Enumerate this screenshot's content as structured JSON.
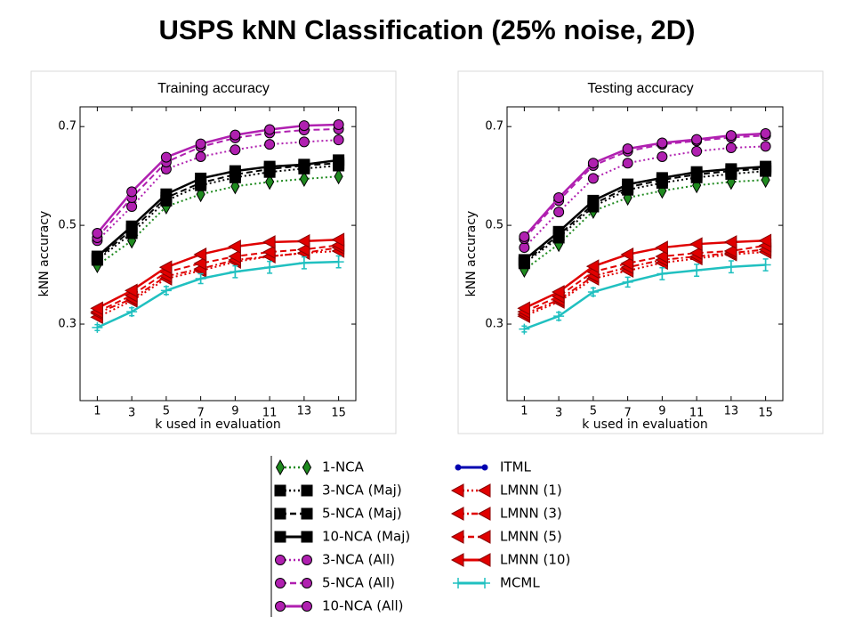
{
  "title": "USPS kNN Classification (25% noise, 2D)",
  "chart_data": [
    {
      "type": "line",
      "title": "Training accuracy",
      "xlabel": "k used in evaluation",
      "ylabel": "kNN accuracy",
      "x": [
        1,
        3,
        5,
        7,
        9,
        11,
        13,
        15
      ],
      "xlim": [
        0,
        16
      ],
      "xticks": [
        1,
        3,
        5,
        7,
        9,
        11,
        13,
        15
      ],
      "ylim": [
        0.145,
        0.74
      ],
      "yticks": [
        0.3,
        0.5,
        0.7
      ],
      "series": [
        {
          "name": "1-NCA",
          "color": "#1f8a1f",
          "marker": "diamond",
          "dash": "dotted",
          "values": [
            0.419,
            0.469,
            0.538,
            0.563,
            0.579,
            0.588,
            0.594,
            0.599
          ]
        },
        {
          "name": "3-NCA (Maj)",
          "color": "#000000",
          "marker": "square",
          "dash": "dotted",
          "values": [
            0.43,
            0.484,
            0.55,
            0.581,
            0.597,
            0.608,
            0.615,
            0.621
          ]
        },
        {
          "name": "5-NCA (Maj)",
          "color": "#000000",
          "marker": "square",
          "dash": "dashed",
          "values": [
            0.433,
            0.491,
            0.556,
            0.586,
            0.603,
            0.614,
            0.621,
            0.626
          ]
        },
        {
          "name": "10-NCA (Maj)",
          "color": "#000000",
          "marker": "square",
          "dash": "solid",
          "values": [
            0.437,
            0.498,
            0.563,
            0.595,
            0.61,
            0.619,
            0.623,
            0.632
          ]
        },
        {
          "name": "3-NCA (All)",
          "color": "#b020b0",
          "marker": "circle",
          "dash": "dotted",
          "values": [
            0.469,
            0.538,
            0.614,
            0.639,
            0.653,
            0.664,
            0.669,
            0.673
          ]
        },
        {
          "name": "5-NCA (All)",
          "color": "#b020b0",
          "marker": "circle",
          "dash": "dashed",
          "values": [
            0.475,
            0.556,
            0.628,
            0.659,
            0.677,
            0.687,
            0.693,
            0.695
          ]
        },
        {
          "name": "10-NCA (All)",
          "color": "#b020b0",
          "marker": "circle",
          "dash": "solid",
          "values": [
            0.484,
            0.568,
            0.638,
            0.665,
            0.683,
            0.694,
            0.702,
            0.704
          ]
        },
        {
          "name": "ITML",
          "color": "#0000b0",
          "marker": "dot",
          "dash": "solid",
          "values": [
            null,
            null,
            null,
            null,
            null,
            null,
            null,
            null
          ]
        },
        {
          "name": "LMNN (1)",
          "color": "#e00000",
          "marker": "triangle",
          "dash": "dotted",
          "values": [
            0.314,
            0.347,
            0.392,
            0.408,
            0.426,
            0.437,
            0.444,
            0.448
          ]
        },
        {
          "name": "LMNN (3)",
          "color": "#e00000",
          "marker": "triangle",
          "dash": "dashdot",
          "values": [
            0.322,
            0.351,
            0.397,
            0.412,
            0.43,
            0.437,
            0.444,
            0.455
          ]
        },
        {
          "name": "LMNN (5)",
          "color": "#e00000",
          "marker": "triangle",
          "dash": "dashed",
          "values": [
            0.325,
            0.358,
            0.405,
            0.423,
            0.437,
            0.446,
            0.451,
            0.46
          ]
        },
        {
          "name": "LMNN (10)",
          "color": "#e00000",
          "marker": "triangle",
          "dash": "solid",
          "values": [
            0.332,
            0.368,
            0.415,
            0.441,
            0.457,
            0.466,
            0.468,
            0.471
          ]
        },
        {
          "name": "MCML",
          "color": "#20c0c0",
          "marker": "plus",
          "dash": "solid",
          "values": [
            0.293,
            0.325,
            0.368,
            0.392,
            0.406,
            0.415,
            0.424,
            0.426
          ],
          "errors": [
            0.006,
            0.008,
            0.008,
            0.01,
            0.012,
            0.012,
            0.012,
            0.012
          ]
        }
      ]
    },
    {
      "type": "line",
      "title": "Testing accuracy",
      "xlabel": "k used in evaluation",
      "ylabel": "kNN accuracy",
      "x": [
        1,
        3,
        5,
        7,
        9,
        11,
        13,
        15
      ],
      "xlim": [
        0,
        16
      ],
      "xticks": [
        1,
        3,
        5,
        7,
        9,
        11,
        13,
        15
      ],
      "ylim": [
        0.145,
        0.74
      ],
      "yticks": [
        0.3,
        0.5,
        0.7
      ],
      "series": [
        {
          "values": [
            0.41,
            0.462,
            0.529,
            0.556,
            0.57,
            0.581,
            0.588,
            0.592
          ]
        },
        {
          "values": [
            0.423,
            0.475,
            0.538,
            0.572,
            0.586,
            0.597,
            0.604,
            0.61
          ]
        },
        {
          "values": [
            0.426,
            0.48,
            0.543,
            0.577,
            0.592,
            0.603,
            0.61,
            0.615
          ]
        },
        {
          "values": [
            0.43,
            0.487,
            0.55,
            0.583,
            0.596,
            0.608,
            0.614,
            0.619
          ]
        },
        {
          "values": [
            0.455,
            0.527,
            0.595,
            0.626,
            0.639,
            0.65,
            0.657,
            0.66
          ]
        },
        {
          "values": [
            0.473,
            0.55,
            0.621,
            0.65,
            0.664,
            0.671,
            0.678,
            0.682
          ]
        },
        {
          "values": [
            0.477,
            0.556,
            0.626,
            0.655,
            0.667,
            0.674,
            0.682,
            0.686
          ]
        },
        {
          "values": [
            null,
            null,
            null,
            null,
            null,
            null,
            null,
            null
          ]
        },
        {
          "values": [
            0.316,
            0.345,
            0.392,
            0.408,
            0.424,
            0.433,
            0.441,
            0.446
          ]
        },
        {
          "values": [
            0.32,
            0.349,
            0.397,
            0.415,
            0.43,
            0.437,
            0.444,
            0.451
          ]
        },
        {
          "values": [
            0.325,
            0.356,
            0.406,
            0.423,
            0.437,
            0.444,
            0.448,
            0.459
          ]
        },
        {
          "values": [
            0.332,
            0.365,
            0.417,
            0.441,
            0.455,
            0.462,
            0.466,
            0.469
          ]
        },
        {
          "values": [
            0.29,
            0.316,
            0.365,
            0.385,
            0.402,
            0.409,
            0.416,
            0.42
          ],
          "errors": [
            0.006,
            0.008,
            0.008,
            0.01,
            0.012,
            0.012,
            0.012,
            0.012
          ]
        }
      ]
    }
  ]
}
